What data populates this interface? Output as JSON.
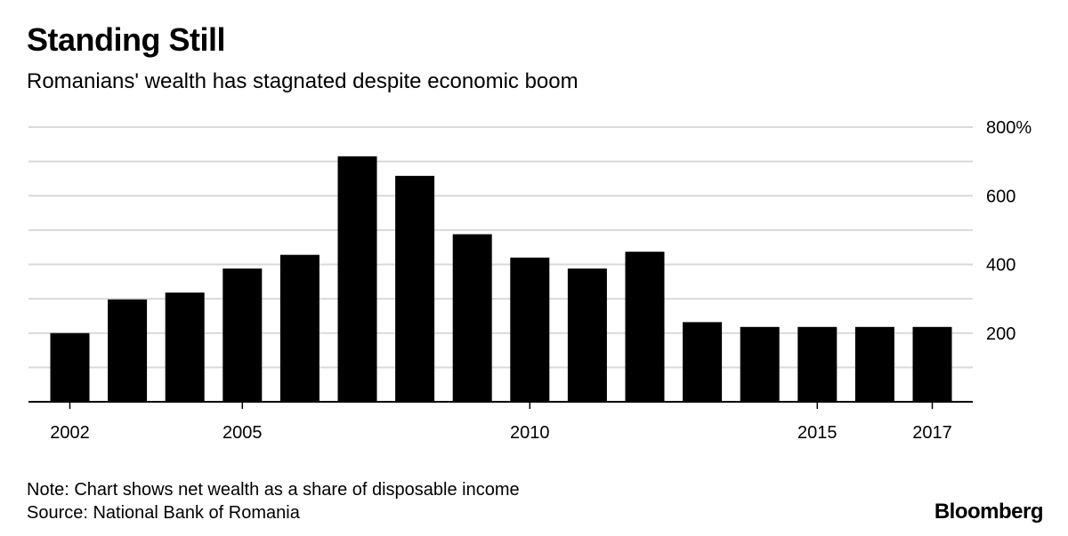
{
  "header": {
    "title": "Standing Still",
    "subtitle": "Romanians' wealth has stagnated despite economic boom"
  },
  "footer": {
    "note": "Note: Chart shows net wealth as a share of disposable income",
    "source": "Source: National Bank of Romania",
    "brand": "Bloomberg"
  },
  "colors": {
    "bar": "#000000",
    "grid": "#d9d9d9",
    "axis": "#000000"
  },
  "chart_data": {
    "type": "bar",
    "title": "Standing Still",
    "subtitle": "Romanians' wealth has stagnated despite economic boom",
    "categories": [
      2002,
      2003,
      2004,
      2005,
      2006,
      2007,
      2008,
      2009,
      2010,
      2011,
      2012,
      2013,
      2014,
      2015,
      2016,
      2017
    ],
    "values": [
      200,
      298,
      318,
      388,
      428,
      715,
      658,
      488,
      420,
      388,
      437,
      232,
      218,
      218,
      218,
      218
    ],
    "ylim": [
      0,
      800
    ],
    "y_gridlines": [
      100,
      200,
      300,
      400,
      500,
      600,
      700,
      800
    ],
    "y_tick_labels": [
      {
        "value": 200,
        "label": "200"
      },
      {
        "value": 400,
        "label": "400"
      },
      {
        "value": 600,
        "label": "600"
      },
      {
        "value": 800,
        "label": "800%"
      }
    ],
    "x_tick_labels": [
      {
        "category": 2002,
        "label": "2002"
      },
      {
        "category": 2005,
        "label": "2005"
      },
      {
        "category": 2010,
        "label": "2010"
      },
      {
        "category": 2015,
        "label": "2015"
      },
      {
        "category": 2017,
        "label": "2017"
      }
    ],
    "y_axis_position": "right",
    "grid": true,
    "legend": "none"
  }
}
